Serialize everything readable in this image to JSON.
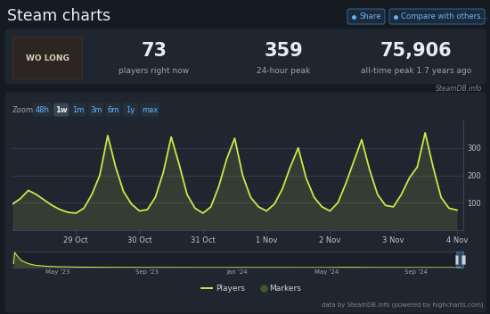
{
  "header": {
    "title": "Steam charts",
    "buttons": [
      "Share",
      "Compare with others..."
    ]
  },
  "game": {
    "logo_text": "WO LONG"
  },
  "stats": [
    {
      "value": "73",
      "label": "players right now"
    },
    {
      "value": "359",
      "label": "24-hour peak"
    },
    {
      "value": "75,906",
      "label": "all-time peak 1.7 years ago"
    }
  ],
  "stats_source": "SteamDB.info",
  "zoom": {
    "label": "Zoom",
    "options": [
      "48h",
      "1w",
      "1m",
      "3m",
      "6m",
      "1y",
      "max"
    ],
    "selected": "1w"
  },
  "chart_data": [
    {
      "type": "line",
      "x": [
        0,
        0.125,
        0.25,
        0.375,
        0.5,
        0.625,
        0.75,
        0.875,
        1,
        1.125,
        1.25,
        1.375,
        1.5,
        1.625,
        1.75,
        1.875,
        2,
        2.125,
        2.25,
        2.375,
        2.5,
        2.625,
        2.75,
        2.875,
        3,
        3.125,
        3.25,
        3.375,
        3.5,
        3.625,
        3.75,
        3.875,
        4,
        4.125,
        4.25,
        4.375,
        4.5,
        4.625,
        4.75,
        4.875,
        5,
        5.125,
        5.25,
        5.375,
        5.5,
        5.625,
        5.75,
        5.875,
        6,
        6.125,
        6.25,
        6.375,
        6.5,
        6.625,
        6.75,
        6.875,
        7
      ],
      "series": [
        {
          "name": "Players",
          "color": "#cbe84a",
          "values": [
            95,
            115,
            145,
            130,
            110,
            90,
            75,
            65,
            62,
            80,
            130,
            200,
            345,
            230,
            140,
            95,
            70,
            75,
            120,
            210,
            340,
            240,
            130,
            80,
            62,
            85,
            160,
            260,
            335,
            200,
            120,
            85,
            70,
            95,
            150,
            230,
            300,
            190,
            120,
            85,
            70,
            100,
            170,
            250,
            330,
            220,
            130,
            90,
            85,
            130,
            190,
            230,
            355,
            230,
            120,
            80,
            73
          ]
        }
      ],
      "xlim": [
        0,
        7.1
      ],
      "xticks": [
        {
          "value": 1,
          "label": "29 Oct"
        },
        {
          "value": 2,
          "label": "30 Oct"
        },
        {
          "value": 3,
          "label": "31 Oct"
        },
        {
          "value": 4,
          "label": "1 Nov"
        },
        {
          "value": 5,
          "label": "2 Nov"
        },
        {
          "value": 6,
          "label": "3 Nov"
        },
        {
          "value": 7,
          "label": "4 Nov"
        }
      ],
      "ylim": [
        0,
        400
      ],
      "yticks": [
        100,
        200,
        300
      ],
      "grid": true
    },
    {
      "type": "line",
      "color": "#cbe84a",
      "x": [
        2.05,
        2.1,
        2.2,
        2.4,
        2.7,
        3,
        3.5,
        4,
        5,
        6,
        7,
        8,
        9,
        10,
        11,
        12,
        13,
        14,
        15,
        16,
        17,
        18,
        19,
        20,
        21,
        22
      ],
      "values": [
        20000,
        75906,
        60000,
        35000,
        20000,
        12000,
        7000,
        4500,
        2500,
        1600,
        1200,
        900,
        700,
        600,
        500,
        700,
        500,
        400,
        350,
        350,
        1500,
        600,
        400,
        350,
        300,
        250
      ],
      "xlim": [
        2.0,
        22.1
      ],
      "xticks": [
        {
          "value": 4,
          "label": "May '23"
        },
        {
          "value": 8,
          "label": "Sep '23"
        },
        {
          "value": 12,
          "label": "Jan '24"
        },
        {
          "value": 16,
          "label": "May '24"
        },
        {
          "value": 20,
          "label": "Sep '24"
        }
      ],
      "ylim": [
        0,
        80000
      ],
      "tick_labels": "x"
    }
  ],
  "markers_legend": {
    "name": "Markers",
    "color": "#3f5a2a"
  },
  "credit": "data by SteamDB.info (powered by highcharts.com)"
}
